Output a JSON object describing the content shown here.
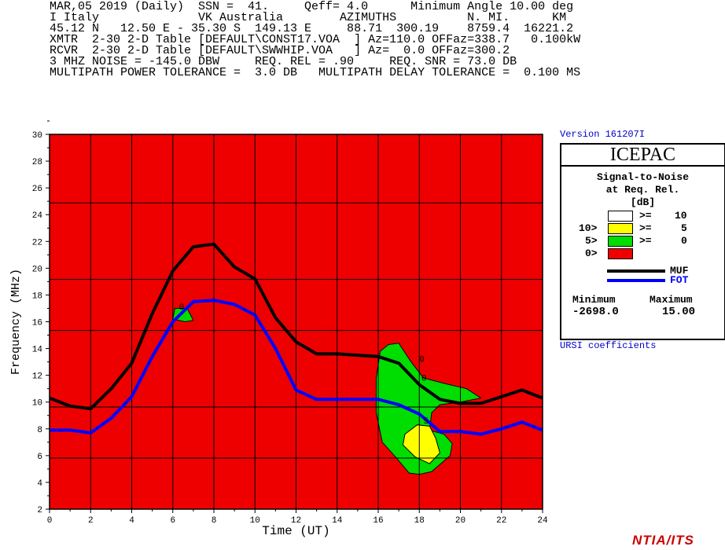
{
  "header": {
    "lines": [
      "MAR,05 2019 (Daily)  SSN =  41.     Qeff= 4.0      Minimum Angle 10.00 deg",
      "I Italy              VK Australia        AZIMUTHS          N. MI.      KM",
      "45.12 N   12.50 E - 35.30 S  149.13 E     88.71  300.19    8759.4  16221.2",
      "XMTR  2-30 2-D Table [DEFAULT\\CONST17.VOA  ] Az=110.0 OFFaz=338.7   0.100kW",
      "RCVR  2-30 2-D Table [DEFAULT\\SWWHIP.VOA   ] Az=  0.0 OFFaz=300.2",
      "3 MHZ NOISE = -145.0 DBW     REQ. REL = .90     REQ. SNR = 73.0 DB",
      "MULTIPATH POWER TOLERANCE =  3.0 DB   MULTIPATH DELAY TOLERANCE =  0.100 MS"
    ]
  },
  "side": {
    "version": "Version 161207I",
    "program": "ICEPAC",
    "legend_title_1": "Signal-to-Noise",
    "legend_title_2": "at Req. Rel.",
    "legend_unit": "[dB]",
    "bands": [
      {
        "prefix": "",
        "op": ">=",
        "val": "10",
        "color": "#ffffff"
      },
      {
        "prefix": "10>",
        "op": ">=",
        "val": "5",
        "color": "#ffff00"
      },
      {
        "prefix": "5>",
        "op": ">=",
        "val": "0",
        "color": "#00dd00"
      },
      {
        "prefix": "0>",
        "op": "",
        "val": "",
        "color": "#ee0000"
      }
    ],
    "muf_label": "MUF",
    "fot_label": "FOT",
    "min_label": "Minimum",
    "max_label": "Maximum",
    "min_value": "-2698.0",
    "max_value": "15.00",
    "ursi": "URSI coefficients",
    "footer": "NTIA/ITS"
  },
  "chart_data": {
    "type": "area",
    "xlabel": "Time (UT)",
    "ylabel": "Frequency (MHz)",
    "xlim": [
      0,
      24
    ],
    "ylim": [
      2,
      30
    ],
    "xticks": [
      0,
      2,
      4,
      6,
      8,
      10,
      12,
      14,
      16,
      18,
      20,
      22,
      24
    ],
    "yticks": [
      2,
      4,
      6,
      8,
      10,
      12,
      14,
      16,
      18,
      20,
      22,
      24,
      26,
      28,
      30
    ],
    "grid": true,
    "background_color": "#ee0000",
    "series": [
      {
        "name": "MUF",
        "color": "#000000",
        "x": [
          0,
          1,
          2,
          3,
          4,
          5,
          6,
          7,
          8,
          9,
          10,
          11,
          12,
          13,
          14,
          15,
          16,
          17,
          18,
          19,
          20,
          21,
          22,
          23,
          24
        ],
        "y": [
          10.3,
          9.7,
          9.5,
          11.0,
          12.9,
          16.6,
          19.8,
          21.6,
          21.8,
          20.1,
          19.2,
          16.3,
          14.5,
          13.6,
          13.6,
          13.5,
          13.4,
          12.9,
          11.3,
          10.2,
          9.9,
          9.9,
          10.4,
          10.9,
          10.3
        ]
      },
      {
        "name": "FOT",
        "color": "#0000ff",
        "x": [
          0,
          1,
          2,
          3,
          4,
          5,
          6,
          7,
          8,
          9,
          10,
          11,
          12,
          13,
          14,
          15,
          16,
          17,
          18,
          19,
          20,
          21,
          22,
          23,
          24
        ],
        "y": [
          7.9,
          7.9,
          7.7,
          8.8,
          10.4,
          13.4,
          16.0,
          17.5,
          17.6,
          17.3,
          16.5,
          14.0,
          10.9,
          10.2,
          10.2,
          10.2,
          10.2,
          9.8,
          9.1,
          7.8,
          7.8,
          7.6,
          8.0,
          8.5,
          7.9
        ]
      }
    ],
    "contours": [
      {
        "level": "5>=0",
        "color": "#00dd00",
        "points": [
          [
            16.1,
            13.8
          ],
          [
            16.5,
            14.3
          ],
          [
            17.0,
            14.4
          ],
          [
            17.6,
            13.0
          ],
          [
            18.2,
            11.8
          ],
          [
            19.2,
            11.4
          ],
          [
            20.3,
            11.0
          ],
          [
            21.0,
            10.3
          ],
          [
            20.0,
            10.0
          ],
          [
            19.0,
            9.8
          ],
          [
            18.6,
            9.2
          ],
          [
            18.5,
            7.9
          ],
          [
            19.2,
            7.6
          ],
          [
            19.6,
            6.9
          ],
          [
            19.5,
            6.0
          ],
          [
            18.6,
            4.8
          ],
          [
            18.0,
            4.6
          ],
          [
            17.5,
            4.7
          ],
          [
            16.9,
            5.8
          ],
          [
            16.2,
            7.0
          ],
          [
            15.9,
            9.2
          ],
          [
            15.9,
            11.8
          ]
        ]
      },
      {
        "level": "10>=5",
        "color": "#ffff00",
        "points": [
          [
            17.3,
            7.6
          ],
          [
            17.9,
            8.3
          ],
          [
            18.5,
            8.2
          ],
          [
            18.8,
            7.3
          ],
          [
            19.0,
            6.2
          ],
          [
            18.5,
            5.4
          ],
          [
            17.8,
            5.9
          ],
          [
            17.2,
            6.8
          ]
        ]
      },
      {
        "level": "5>=0",
        "color": "#00dd00",
        "points": [
          [
            6.0,
            16.2
          ],
          [
            6.1,
            17.0
          ],
          [
            6.7,
            17.0
          ],
          [
            7.0,
            16.1
          ],
          [
            6.6,
            16.0
          ]
        ]
      }
    ],
    "contour_labels": [
      {
        "x": 18.1,
        "y": 11.6,
        "text": "0"
      },
      {
        "x": 18.0,
        "y": 13.0,
        "text": "0"
      },
      {
        "x": 18.2,
        "y": 8.4,
        "text": "5"
      },
      {
        "x": 6.3,
        "y": 16.9,
        "text": "0"
      }
    ]
  }
}
